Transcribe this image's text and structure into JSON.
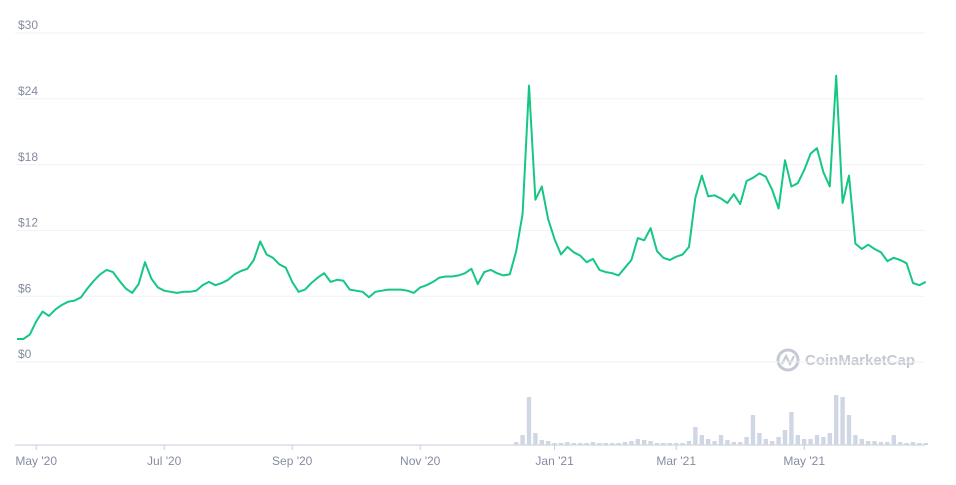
{
  "chart_data": {
    "type": "line",
    "categories": [
      null,
      null,
      null,
      "May '20",
      null,
      null,
      null,
      null,
      null,
      null,
      null,
      null,
      null,
      null,
      null,
      null,
      null,
      null,
      null,
      null,
      null,
      null,
      null,
      "Jul '20",
      null,
      null,
      null,
      null,
      null,
      null,
      null,
      null,
      null,
      null,
      null,
      null,
      null,
      null,
      null,
      null,
      null,
      null,
      null,
      "Sep '20",
      null,
      null,
      null,
      null,
      null,
      null,
      null,
      null,
      null,
      null,
      null,
      null,
      null,
      null,
      null,
      null,
      null,
      null,
      null,
      "Nov '20",
      null,
      null,
      null,
      null,
      null,
      null,
      null,
      null,
      null,
      null,
      null,
      null,
      null,
      null,
      null,
      null,
      null,
      null,
      null,
      null,
      "Jan '21",
      null,
      null,
      null,
      null,
      null,
      null,
      null,
      null,
      null,
      null,
      null,
      null,
      null,
      null,
      null,
      null,
      null,
      null,
      "Mar '21",
      null,
      null,
      null,
      null,
      null,
      null,
      null,
      null,
      null,
      null,
      null,
      null,
      null,
      null,
      null,
      null,
      null,
      null,
      null,
      "May '21",
      null,
      null,
      null,
      null,
      null,
      null,
      null,
      null,
      null,
      null,
      null,
      null,
      null,
      null,
      null,
      null,
      null,
      null,
      null
    ],
    "series": [
      {
        "color": "#16c784",
        "values": [
          2.1,
          2.1,
          2.5,
          3.7,
          4.6,
          4.2,
          4.8,
          5.2,
          5.5,
          5.6,
          5.9,
          6.7,
          7.4,
          8.0,
          8.4,
          8.2,
          7.4,
          6.7,
          6.3,
          7.1,
          9.1,
          7.6,
          6.8,
          6.5,
          6.4,
          6.3,
          6.4,
          6.4,
          6.5,
          7.0,
          7.3,
          7.0,
          7.2,
          7.5,
          8.0,
          8.3,
          8.5,
          9.3,
          11.0,
          9.8,
          9.5,
          8.9,
          8.6,
          7.3,
          6.4,
          6.6,
          7.2,
          7.7,
          8.1,
          7.3,
          7.5,
          7.4,
          6.6,
          6.5,
          6.4,
          5.9,
          6.4,
          6.5,
          6.6,
          6.6,
          6.6,
          6.5,
          6.3,
          6.8,
          7.0,
          7.3,
          7.7,
          7.8,
          7.8,
          7.9,
          8.1,
          8.5,
          7.1,
          8.2,
          8.4,
          8.1,
          7.9,
          8.0,
          10.1,
          13.5,
          25.2,
          14.8,
          16.0,
          13.0,
          11.2,
          9.8,
          10.5,
          10.0,
          9.7,
          9.1,
          9.4,
          8.4,
          8.2,
          8.1,
          7.9,
          8.6,
          9.3,
          11.3,
          11.1,
          12.2,
          10.1,
          9.5,
          9.3,
          9.6,
          9.8,
          10.5,
          15.0,
          17.0,
          15.1,
          15.2,
          14.9,
          14.5,
          15.3,
          14.4,
          16.5,
          16.8,
          17.2,
          16.9,
          15.7,
          14.0,
          18.4,
          16.0,
          16.3,
          17.5,
          19.0,
          19.5,
          17.3,
          16.0,
          26.1,
          14.5,
          17.0,
          10.8,
          10.3,
          10.7,
          10.3,
          10.0,
          9.2,
          9.5,
          9.3,
          9.0,
          7.2,
          7.0,
          7.3
        ]
      },
      {
        "color": "#cfd6e4",
        "axis": "y2",
        "values": [
          0.5,
          0.5,
          0.5,
          0.5,
          0.5,
          0.5,
          0.5,
          0.5,
          0.5,
          0.5,
          0.5,
          0.5,
          0.5,
          0.5,
          0.5,
          0.5,
          0.5,
          0.5,
          0.5,
          0.5,
          0.5,
          0.5,
          0.5,
          0.5,
          0.5,
          0.5,
          0.5,
          0.5,
          0.5,
          0.5,
          0.5,
          0.5,
          0.5,
          0.5,
          0.5,
          0.5,
          0.5,
          0.5,
          0.5,
          0.5,
          0.5,
          0.5,
          0.5,
          0.5,
          0.5,
          0.5,
          0.5,
          0.5,
          0.5,
          0.5,
          0.5,
          0.5,
          0.5,
          0.5,
          0.5,
          0.5,
          0.5,
          0.5,
          0.5,
          0.5,
          0.5,
          0.5,
          0.5,
          0.5,
          0.5,
          0.5,
          0.5,
          0.5,
          0.5,
          0.5,
          0.5,
          0.5,
          0.5,
          0.5,
          0.5,
          0.5,
          0.5,
          0.5,
          3,
          10,
          48,
          12,
          5,
          4,
          2,
          2,
          3,
          2,
          2,
          2,
          3,
          2,
          2,
          2,
          2,
          3,
          4,
          6,
          5,
          4,
          2,
          2,
          2,
          2,
          2,
          4,
          18,
          10,
          6,
          4,
          10,
          5,
          3,
          3,
          8,
          30,
          12,
          6,
          4,
          8,
          15,
          33,
          10,
          6,
          6,
          10,
          8,
          12,
          50,
          48,
          30,
          10,
          6,
          4,
          4,
          3,
          3,
          10,
          3,
          2,
          3,
          2,
          2
        ]
      }
    ],
    "ylim": [
      0,
      30
    ],
    "yticks": [
      {
        "value": 0,
        "label": "$0"
      },
      {
        "value": 6,
        "label": "$6"
      },
      {
        "value": 12,
        "label": "$12"
      },
      {
        "value": 18,
        "label": "$18"
      },
      {
        "value": 24,
        "label": "$24"
      },
      {
        "value": 30,
        "label": "$30"
      }
    ],
    "y2lim": [
      0,
      50
    ],
    "grid": true,
    "watermark": "CoinMarketCap"
  }
}
